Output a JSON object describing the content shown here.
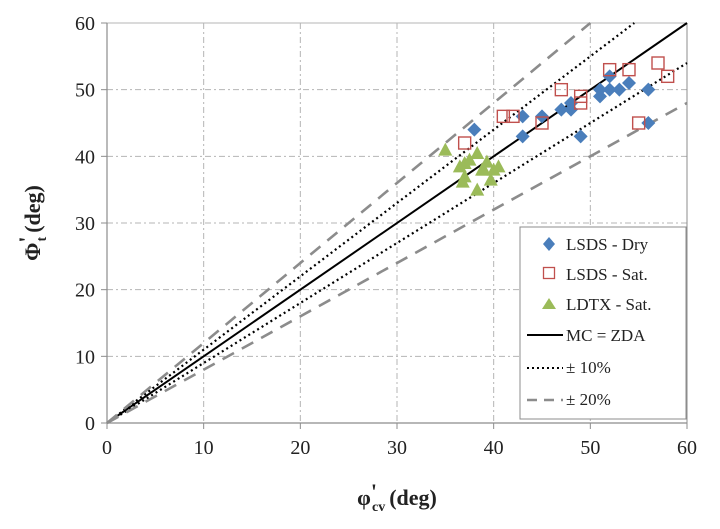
{
  "chart_data": {
    "type": "scatter",
    "title": "",
    "xlabel": {
      "main": "φ",
      "prime": "'",
      "sub": "cv",
      "unit": "(deg)"
    },
    "ylabel": {
      "main": "Φ",
      "prime": "'",
      "sub": "t",
      "unit": "(deg)"
    },
    "xlim": [
      0,
      60
    ],
    "ylim": [
      0,
      60
    ],
    "xticks": [
      "0",
      "10",
      "20",
      "30",
      "40",
      "50",
      "60"
    ],
    "yticks": [
      "0",
      "10",
      "20",
      "30",
      "40",
      "50",
      "60"
    ],
    "grid": true,
    "legend_position": "bottom-right",
    "series": [
      {
        "name": "LSDS - Dry",
        "marker": "diamond",
        "color": "#4a7ebb",
        "points": [
          [
            38,
            44
          ],
          [
            43,
            46
          ],
          [
            43,
            43
          ],
          [
            45,
            46
          ],
          [
            47,
            47
          ],
          [
            48,
            48
          ],
          [
            48,
            47
          ],
          [
            49,
            43
          ],
          [
            51,
            49
          ],
          [
            51,
            50
          ],
          [
            52,
            50
          ],
          [
            52,
            52
          ],
          [
            53,
            50
          ],
          [
            54,
            51
          ],
          [
            56,
            50
          ],
          [
            56,
            45
          ]
        ]
      },
      {
        "name": "LSDS - Sat.",
        "marker": "square-open",
        "color": "#c0504d",
        "points": [
          [
            37,
            42
          ],
          [
            41,
            46
          ],
          [
            42,
            46
          ],
          [
            45,
            45
          ],
          [
            47,
            50
          ],
          [
            49,
            48
          ],
          [
            49,
            49
          ],
          [
            52,
            53
          ],
          [
            54,
            53
          ],
          [
            57,
            54
          ],
          [
            58,
            52
          ],
          [
            55,
            45
          ]
        ]
      },
      {
        "name": "LDTX - Sat.",
        "marker": "triangle",
        "color": "#9bbb59",
        "points": [
          [
            35,
            41
          ],
          [
            36.5,
            38.5
          ],
          [
            37,
            39
          ],
          [
            37,
            37
          ],
          [
            37.5,
            39.5
          ],
          [
            38.3,
            40.5
          ],
          [
            38.3,
            35
          ],
          [
            39,
            38
          ],
          [
            39.3,
            39.2
          ],
          [
            40,
            38
          ],
          [
            40.5,
            38.5
          ],
          [
            39.7,
            36.5
          ],
          [
            36.8,
            36.2
          ],
          [
            38.8,
            38
          ]
        ]
      }
    ],
    "lines": [
      {
        "name": "MC = ZDA",
        "style": "solid",
        "color": "#000000",
        "slope": 1.0
      },
      {
        "name": "± 10%",
        "style": "dotted",
        "color": "#000000",
        "slopes": [
          1.1,
          0.9
        ]
      },
      {
        "name": "± 20%",
        "style": "dashed",
        "color": "#8c8c8c",
        "slopes": [
          1.2,
          0.8
        ]
      }
    ]
  }
}
